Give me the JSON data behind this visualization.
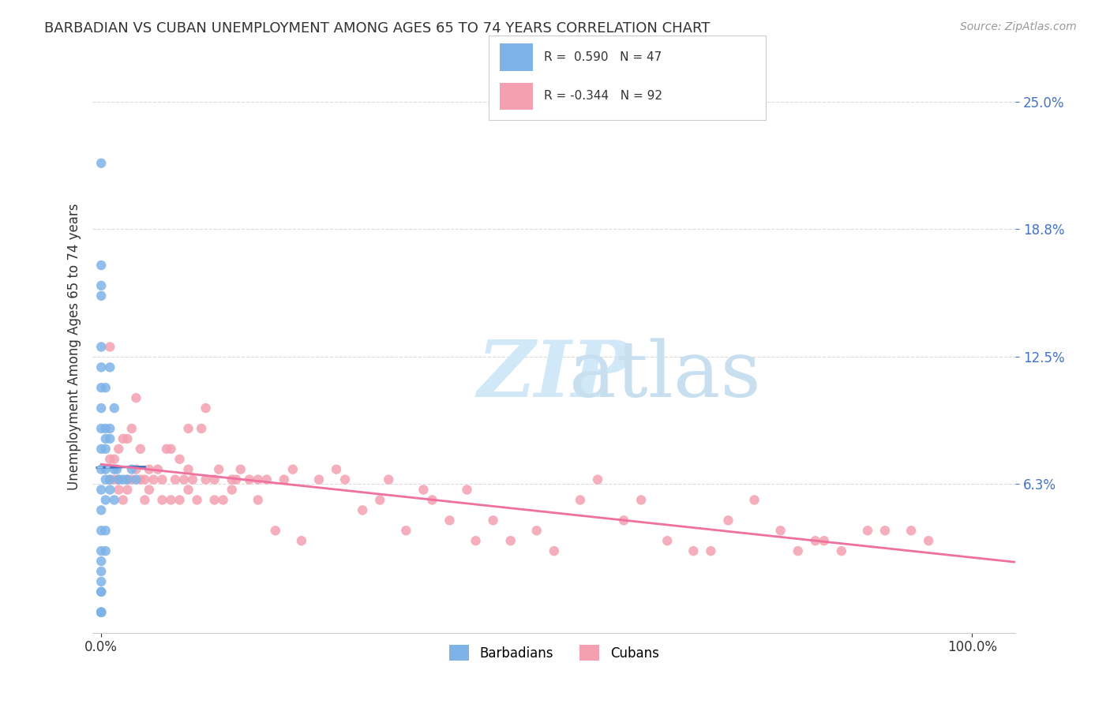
{
  "title": "BARBADIAN VS CUBAN UNEMPLOYMENT AMONG AGES 65 TO 74 YEARS CORRELATION CHART",
  "source": "Source: ZipAtlas.com",
  "ylabel": "Unemployment Among Ages 65 to 74 years",
  "xlabel": "",
  "x_tick_labels": [
    "0.0%",
    "100.0%"
  ],
  "y_tick_labels": [
    "25.0%",
    "18.8%",
    "12.5%",
    "6.3%"
  ],
  "y_tick_values": [
    0.25,
    0.188,
    0.125,
    0.063
  ],
  "xlim": [
    -0.01,
    1.05
  ],
  "ylim": [
    -0.01,
    0.27
  ],
  "legend_label1": "Barbadians",
  "legend_label2": "Cubans",
  "legend_R1": "R =  0.590",
  "legend_N1": "N = 47",
  "legend_R2": "R = -0.344",
  "legend_N2": "N = 92",
  "color_barbadian": "#7EB3E8",
  "color_cuban": "#F4A0B0",
  "color_barbadian_line": "#3A6FBF",
  "color_cuban_line": "#F070A0",
  "color_barbadian_dashed": "#A0C8F0",
  "watermark_text": "ZIPatlas",
  "watermark_color": "#D0E8F8",
  "background_color": "#FFFFFF",
  "barbadian_x": [
    0.0,
    0.0,
    0.0,
    0.0,
    0.0,
    0.0,
    0.0,
    0.0,
    0.0,
    0.0,
    0.0,
    0.0,
    0.0,
    0.0,
    0.0,
    0.0,
    0.0,
    0.0,
    0.0,
    0.0,
    0.0,
    0.0,
    0.0,
    0.0,
    0.005,
    0.005,
    0.005,
    0.005,
    0.005,
    0.005,
    0.005,
    0.005,
    0.005,
    0.01,
    0.01,
    0.01,
    0.01,
    0.01,
    0.015,
    0.015,
    0.015,
    0.018,
    0.02,
    0.025,
    0.03,
    0.035,
    0.04
  ],
  "barbadian_y": [
    0.0,
    0.0,
    0.0,
    0.01,
    0.01,
    0.015,
    0.02,
    0.025,
    0.03,
    0.04,
    0.05,
    0.06,
    0.07,
    0.08,
    0.09,
    0.1,
    0.11,
    0.12,
    0.13,
    0.155,
    0.16,
    0.17,
    0.22,
    0.0,
    0.03,
    0.04,
    0.055,
    0.065,
    0.07,
    0.08,
    0.085,
    0.09,
    0.11,
    0.06,
    0.065,
    0.085,
    0.09,
    0.12,
    0.055,
    0.07,
    0.1,
    0.07,
    0.065,
    0.065,
    0.065,
    0.07,
    0.065
  ],
  "cuban_x": [
    0.01,
    0.01,
    0.01,
    0.015,
    0.015,
    0.02,
    0.02,
    0.02,
    0.025,
    0.025,
    0.03,
    0.03,
    0.03,
    0.035,
    0.035,
    0.04,
    0.04,
    0.045,
    0.045,
    0.05,
    0.05,
    0.055,
    0.055,
    0.06,
    0.065,
    0.07,
    0.07,
    0.075,
    0.08,
    0.08,
    0.085,
    0.09,
    0.09,
    0.095,
    0.1,
    0.1,
    0.1,
    0.105,
    0.11,
    0.115,
    0.12,
    0.12,
    0.13,
    0.13,
    0.135,
    0.14,
    0.15,
    0.15,
    0.155,
    0.16,
    0.17,
    0.18,
    0.18,
    0.19,
    0.2,
    0.21,
    0.22,
    0.23,
    0.25,
    0.27,
    0.28,
    0.3,
    0.32,
    0.33,
    0.35,
    0.37,
    0.38,
    0.4,
    0.42,
    0.43,
    0.45,
    0.47,
    0.5,
    0.52,
    0.55,
    0.57,
    0.6,
    0.62,
    0.65,
    0.68,
    0.7,
    0.72,
    0.75,
    0.78,
    0.8,
    0.82,
    0.83,
    0.85,
    0.88,
    0.9,
    0.93,
    0.95
  ],
  "cuban_y": [
    0.065,
    0.075,
    0.13,
    0.065,
    0.075,
    0.06,
    0.065,
    0.08,
    0.055,
    0.085,
    0.06,
    0.065,
    0.085,
    0.065,
    0.09,
    0.07,
    0.105,
    0.065,
    0.08,
    0.055,
    0.065,
    0.06,
    0.07,
    0.065,
    0.07,
    0.055,
    0.065,
    0.08,
    0.055,
    0.08,
    0.065,
    0.055,
    0.075,
    0.065,
    0.06,
    0.07,
    0.09,
    0.065,
    0.055,
    0.09,
    0.065,
    0.1,
    0.055,
    0.065,
    0.07,
    0.055,
    0.06,
    0.065,
    0.065,
    0.07,
    0.065,
    0.055,
    0.065,
    0.065,
    0.04,
    0.065,
    0.07,
    0.035,
    0.065,
    0.07,
    0.065,
    0.05,
    0.055,
    0.065,
    0.04,
    0.06,
    0.055,
    0.045,
    0.06,
    0.035,
    0.045,
    0.035,
    0.04,
    0.03,
    0.055,
    0.065,
    0.045,
    0.055,
    0.035,
    0.03,
    0.03,
    0.045,
    0.055,
    0.04,
    0.03,
    0.035,
    0.035,
    0.03,
    0.04,
    0.04,
    0.04,
    0.035
  ]
}
